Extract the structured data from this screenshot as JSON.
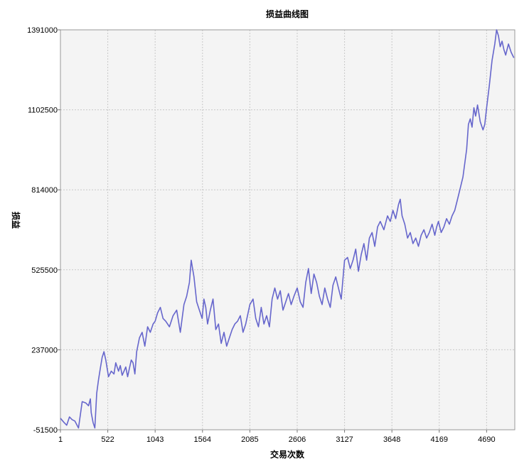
{
  "chart_data": {
    "type": "line",
    "title": "损益曲线图",
    "xlabel": "交易次数",
    "ylabel": "损益",
    "xlim": [
      1,
      5000
    ],
    "ylim": [
      -51500,
      1391000
    ],
    "x_ticks": [
      1,
      522,
      1043,
      1564,
      2085,
      2606,
      3127,
      3648,
      4169,
      4690
    ],
    "x_tick_labels": [
      "1",
      "522",
      "1043",
      "1564",
      "2085",
      "2606",
      "3127",
      "3648",
      "4169",
      "4690"
    ],
    "y_ticks": [
      -51500,
      237000,
      525500,
      814000,
      1102500,
      1391000
    ],
    "y_tick_labels": [
      "-51500",
      "237000",
      "525500",
      "814000",
      "1102500",
      "1391000"
    ],
    "grid": true,
    "line_color": "#6666cc",
    "plot_background": "#f4f4f4",
    "series": [
      {
        "x": [
          1,
          40,
          70,
          100,
          130,
          160,
          200,
          240,
          280,
          310,
          330,
          340,
          360,
          380,
          400,
          420,
          440,
          460,
          480,
          500,
          530,
          560,
          590,
          610,
          640,
          660,
          680,
          700,
          720,
          740,
          760,
          780,
          800,
          820,
          840,
          870,
          900,
          930,
          960,
          990,
          1020,
          1043,
          1070,
          1100,
          1130,
          1160,
          1200,
          1240,
          1280,
          1320,
          1360,
          1390,
          1420,
          1440,
          1470,
          1500,
          1530,
          1560,
          1580,
          1600,
          1620,
          1650,
          1680,
          1710,
          1740,
          1770,
          1800,
          1830,
          1860,
          1890,
          1920,
          1950,
          1980,
          2010,
          2040,
          2085,
          2120,
          2150,
          2180,
          2210,
          2240,
          2270,
          2300,
          2330,
          2360,
          2390,
          2420,
          2450,
          2480,
          2510,
          2540,
          2570,
          2606,
          2640,
          2670,
          2700,
          2730,
          2760,
          2790,
          2820,
          2850,
          2880,
          2910,
          2940,
          2970,
          3000,
          3030,
          3060,
          3090,
          3127,
          3160,
          3190,
          3220,
          3250,
          3280,
          3310,
          3340,
          3370,
          3400,
          3430,
          3460,
          3490,
          3520,
          3560,
          3600,
          3630,
          3660,
          3690,
          3720,
          3740,
          3760,
          3790,
          3820,
          3850,
          3880,
          3910,
          3940,
          3970,
          4000,
          4030,
          4060,
          4090,
          4120,
          4140,
          4160,
          4190,
          4220,
          4250,
          4280,
          4310,
          4340,
          4370,
          4400,
          4430,
          4450,
          4470,
          4490,
          4510,
          4530,
          4550,
          4570,
          4590,
          4620,
          4650,
          4670,
          4690,
          4720,
          4750,
          4780,
          4800,
          4820,
          4840,
          4860,
          4880,
          4900,
          4930,
          4960,
          4990
        ],
        "y": [
          -10000,
          -25000,
          -35000,
          -5000,
          -15000,
          -20000,
          -45000,
          50000,
          45000,
          35000,
          60000,
          10000,
          -25000,
          -45000,
          80000,
          130000,
          170000,
          210000,
          230000,
          200000,
          140000,
          160000,
          150000,
          190000,
          160000,
          180000,
          145000,
          160000,
          175000,
          140000,
          170000,
          200000,
          190000,
          150000,
          230000,
          280000,
          300000,
          250000,
          320000,
          300000,
          330000,
          340000,
          370000,
          390000,
          350000,
          340000,
          320000,
          360000,
          380000,
          300000,
          400000,
          430000,
          480000,
          560000,
          500000,
          410000,
          380000,
          350000,
          420000,
          390000,
          330000,
          380000,
          420000,
          310000,
          330000,
          260000,
          300000,
          250000,
          280000,
          310000,
          330000,
          340000,
          360000,
          300000,
          330000,
          400000,
          420000,
          350000,
          320000,
          390000,
          330000,
          360000,
          320000,
          420000,
          460000,
          420000,
          450000,
          380000,
          410000,
          440000,
          400000,
          430000,
          460000,
          410000,
          390000,
          480000,
          530000,
          440000,
          510000,
          480000,
          430000,
          400000,
          460000,
          420000,
          390000,
          470000,
          500000,
          460000,
          420000,
          560000,
          570000,
          530000,
          560000,
          600000,
          520000,
          580000,
          620000,
          560000,
          640000,
          660000,
          610000,
          680000,
          700000,
          670000,
          720000,
          700000,
          740000,
          710000,
          760000,
          780000,
          720000,
          690000,
          640000,
          660000,
          620000,
          640000,
          610000,
          650000,
          670000,
          640000,
          660000,
          690000,
          650000,
          680000,
          700000,
          660000,
          680000,
          710000,
          690000,
          720000,
          740000,
          780000,
          820000,
          860000,
          910000,
          960000,
          1050000,
          1070000,
          1040000,
          1110000,
          1080000,
          1120000,
          1060000,
          1030000,
          1050000,
          1110000,
          1190000,
          1280000,
          1340000,
          1391000,
          1370000,
          1330000,
          1350000,
          1320000,
          1300000,
          1340000,
          1310000,
          1290000
        ]
      }
    ]
  }
}
